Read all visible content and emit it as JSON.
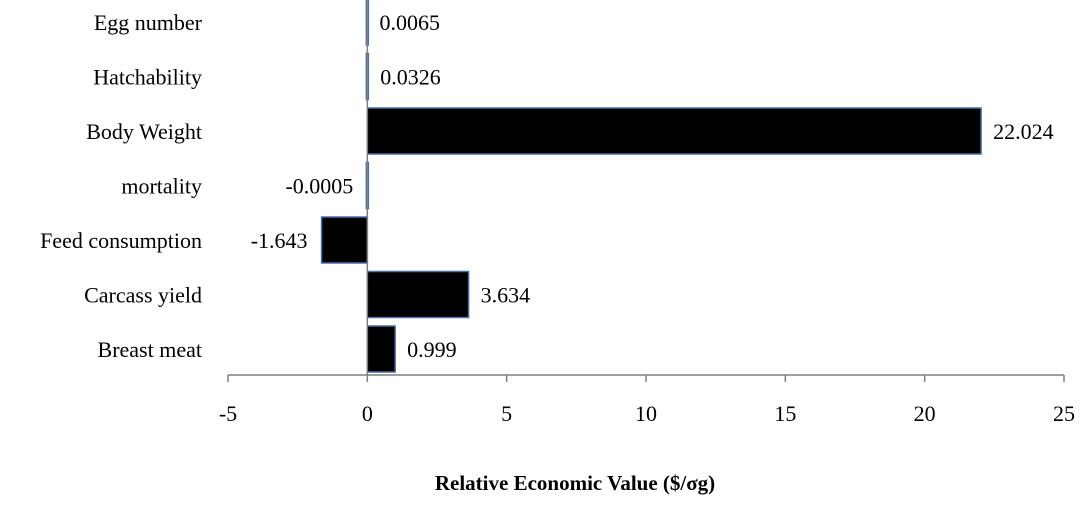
{
  "chart_data": {
    "type": "bar",
    "orientation": "horizontal",
    "categories": [
      "Egg number",
      "Hatchability",
      "Body Weight",
      "mortality",
      "Feed consumption",
      "Carcass yield",
      "Breast meat"
    ],
    "values": [
      0.0065,
      0.0326,
      22.024,
      -0.0005,
      -1.643,
      3.634,
      0.999
    ],
    "value_labels": [
      "0.0065",
      "0.0326",
      "22.024",
      "-0.0005",
      "-1.643",
      "3.634",
      "0.999"
    ],
    "title": "",
    "xlabel": "Relative Economic Value ($/σg)",
    "ylabel": "",
    "xlim": [
      -5,
      25
    ],
    "xticks": [
      -5,
      0,
      5,
      10,
      15,
      20,
      25
    ],
    "xtick_labels": [
      "-5",
      "0",
      "5",
      "10",
      "15",
      "20",
      "25"
    ],
    "grid": false,
    "legend": "none",
    "bar_color": "#000000",
    "bar_edge_color": "#4a6fa5"
  }
}
